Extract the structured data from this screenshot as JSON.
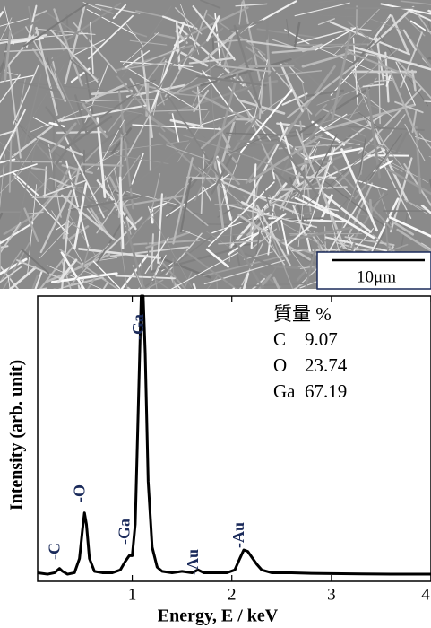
{
  "chart_data": {
    "type": "line",
    "title_image_scale": "10μm",
    "xlabel": "Energy, E / keV",
    "ylabel": "Intensity (arb. unit)",
    "xlim": [
      0.05,
      4.0
    ],
    "ylim": [
      0,
      100
    ],
    "xticks": [
      1,
      2,
      3,
      4
    ],
    "x": [
      0.05,
      0.15,
      0.22,
      0.27,
      0.3,
      0.35,
      0.42,
      0.47,
      0.5,
      0.52,
      0.54,
      0.57,
      0.62,
      0.7,
      0.8,
      0.88,
      0.93,
      0.97,
      1.0,
      1.03,
      1.06,
      1.09,
      1.11,
      1.13,
      1.16,
      1.2,
      1.25,
      1.3,
      1.4,
      1.5,
      1.6,
      1.66,
      1.72,
      1.85,
      1.95,
      2.03,
      2.08,
      2.12,
      2.16,
      2.2,
      2.25,
      2.3,
      2.4,
      2.6,
      2.8,
      3.0,
      3.3,
      3.6,
      4.0
    ],
    "series": [
      {
        "color": "#000000",
        "values": [
          3,
          2.5,
          3,
          4.5,
          3.5,
          2.5,
          3,
          8,
          18,
          24,
          20,
          8,
          3.5,
          3,
          3,
          4,
          7,
          9,
          9,
          20,
          60,
          100,
          100,
          80,
          35,
          12,
          5,
          3.5,
          3,
          3.5,
          3,
          4,
          3,
          3,
          3,
          4,
          8,
          11,
          10.5,
          8.5,
          6,
          4,
          3,
          3,
          2.8,
          2.7,
          2.6,
          2.5,
          2.5
        ]
      }
    ],
    "peak_labels": [
      {
        "text": "-C",
        "x": 0.27
      },
      {
        "text": "-O",
        "x": 0.52
      },
      {
        "text": "-Ga",
        "x": 0.97
      },
      {
        "text": "-Ga",
        "x": 1.11
      },
      {
        "text": "-Au",
        "x": 1.66
      },
      {
        "text": "-Au",
        "x": 2.12
      }
    ],
    "composition": {
      "header": "質量 %",
      "rows": [
        [
          "C",
          9.07
        ],
        [
          "O",
          23.74
        ],
        [
          "Ga",
          67.19
        ]
      ]
    }
  }
}
